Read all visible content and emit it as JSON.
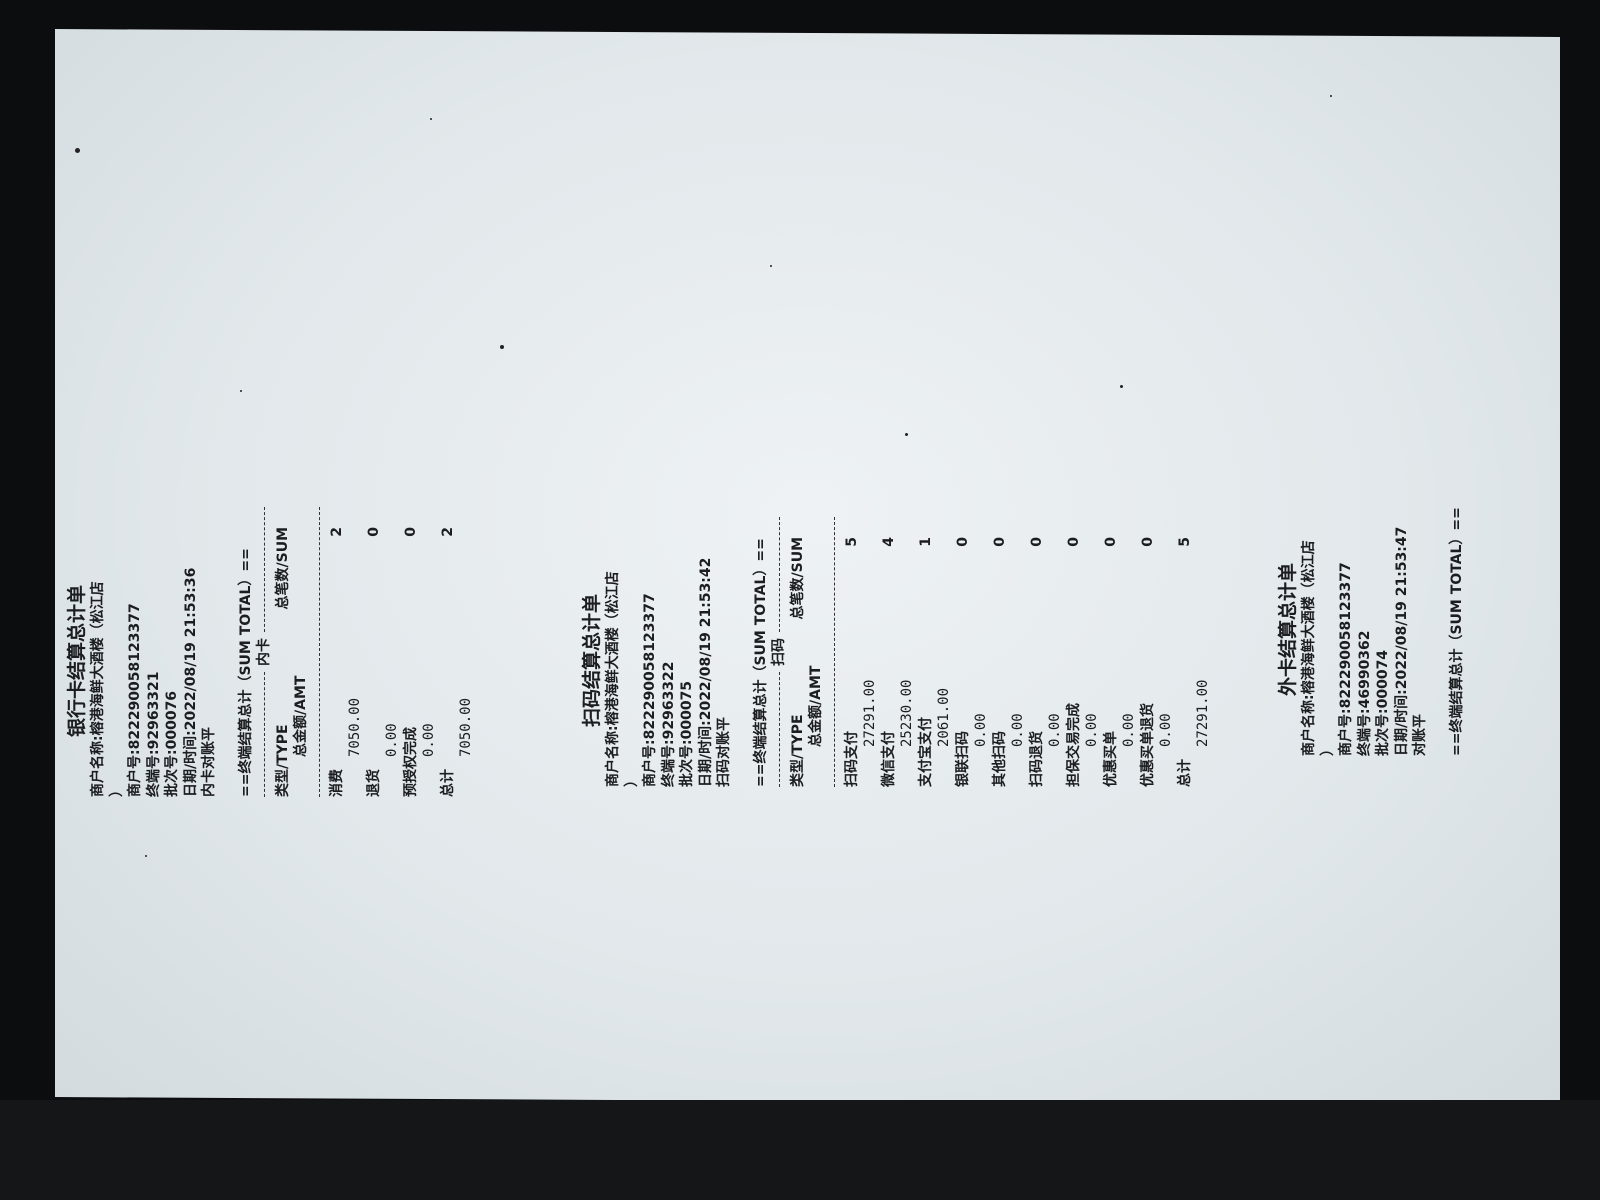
{
  "colors": {
    "paper": "#e2e8eb",
    "ink": "#1b1d20",
    "background": "#0c0d0f"
  },
  "receipts": [
    {
      "title": "银行卡结算总计单",
      "merchant_name": "商户名称:榕港海鲜大酒楼（松江店",
      "merchant_name_cont": "）",
      "merchant_no": "商户号:822290058123377",
      "terminal_no": "终端号:92963321",
      "batch_no": "批次号:000076",
      "datetime": "日期/时间:2022/08/19 21:53:36",
      "reconcile": "内卡对账平",
      "sum_header": "==终端结算总计（SUM TOTAL）==",
      "section": "内卡",
      "col_type": "类型/TYPE",
      "col_sum": "总笔数/SUM",
      "col_amt": "总金额/AMT",
      "rows": [
        {
          "label": "消费",
          "count": "2",
          "amount": "7050.00"
        },
        {
          "label": "退货",
          "count": "0",
          "amount": "0.00"
        },
        {
          "label": "预授权完成",
          "count": "0",
          "amount": "0.00"
        },
        {
          "label": "总计",
          "count": "2",
          "amount": "7050.00"
        }
      ]
    },
    {
      "title": "扫码结算总计单",
      "merchant_name": "商户名称:榕港海鲜大酒楼（松江店",
      "merchant_name_cont": "）",
      "merchant_no": "商户号:822290058123377",
      "terminal_no": "终端号:92963322",
      "batch_no": "批次号:000075",
      "datetime": "日期/时间:2022/08/19 21:53:42",
      "reconcile": "扫码对账平",
      "sum_header": "==终端结算总计（SUM TOTAL）==",
      "section": "扫码",
      "col_type": "类型/TYPE",
      "col_sum": "总笔数/SUM",
      "col_amt": "总金额/AMT",
      "rows": [
        {
          "label": "扫码支付",
          "count": "5",
          "amount": "27291.00"
        },
        {
          "label": "微信支付",
          "count": "4",
          "amount": "25230.00"
        },
        {
          "label": "支付宝支付",
          "count": "1",
          "amount": "2061.00"
        },
        {
          "label": "银联扫码",
          "count": "0",
          "amount": "0.00"
        },
        {
          "label": "其他扫码",
          "count": "0",
          "amount": "0.00"
        },
        {
          "label": "扫码退货",
          "count": "0",
          "amount": "0.00"
        },
        {
          "label": "担保交易完成",
          "count": "0",
          "amount": "0.00"
        },
        {
          "label": "优惠买单",
          "count": "0",
          "amount": "0.00"
        },
        {
          "label": "优惠买单退货",
          "count": "0",
          "amount": "0.00"
        },
        {
          "label": "总计",
          "count": "5",
          "amount": "27291.00"
        }
      ]
    },
    {
      "title": "外卡结算总计单",
      "merchant_name": "商户名称:榕港海鲜大酒楼（松江店",
      "merchant_name_cont": "）",
      "merchant_no": "商户号:822290058123377",
      "terminal_no": "终端号:46990362",
      "batch_no": "批次号:000074",
      "datetime": "日期/时间:2022/08/19 21:53:47",
      "reconcile": "对账平",
      "sum_header": "==终端结算总计（SUM TOTAL）=="
    }
  ]
}
